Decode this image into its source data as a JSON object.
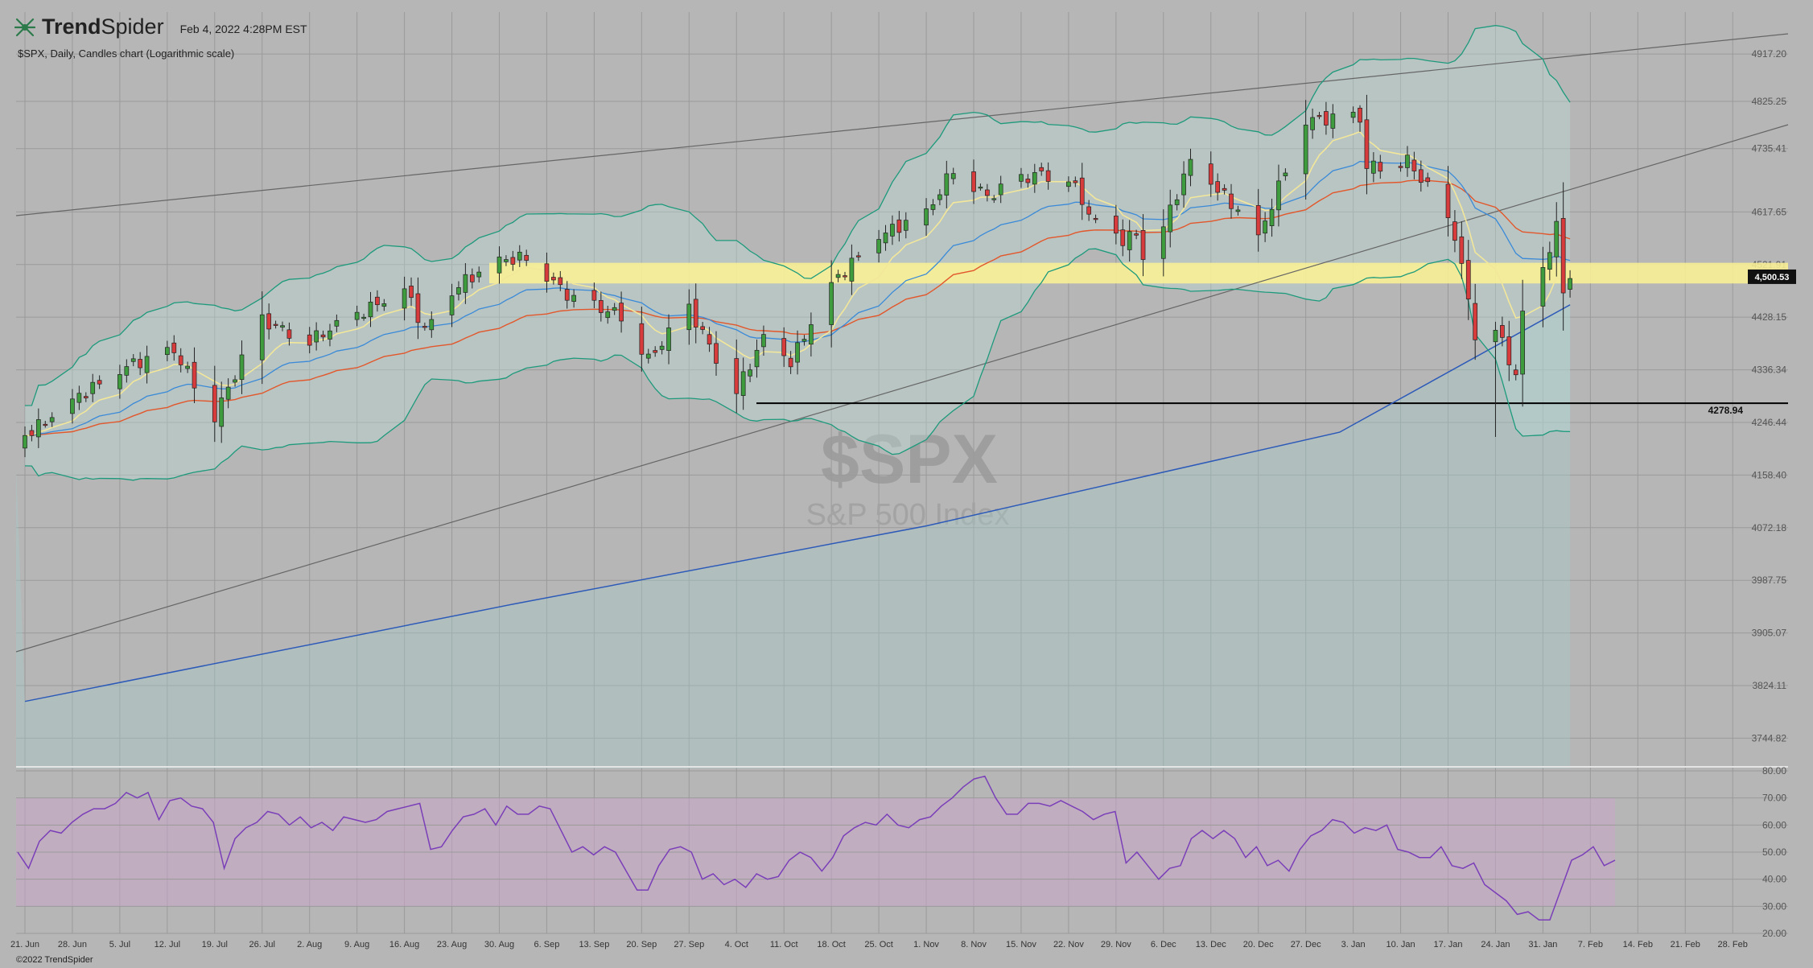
{
  "header": {
    "brand_bold": "Trend",
    "brand_light": "Spider",
    "date": "Feb 4, 2022 4:28PM EST",
    "subtitle": "$SPX, Daily, Candles chart (Logarithmic scale)",
    "logo_icon": "spider-logo-icon"
  },
  "watermark": {
    "symbol": "$SPX",
    "name": "S&P 500 Index"
  },
  "footer": {
    "copyright": "©2022 TrendSpider"
  },
  "colors": {
    "background": "#b6b6b6",
    "up": "#3e9c3e",
    "down": "#d83b3b",
    "sma200": "#2d5ab8",
    "sma50": "#e2572b",
    "bollinger": "#1d9a7c",
    "fast_band": "#f2e79a",
    "rsi": "#7a3fb8",
    "rsi_band": "#caa6c8",
    "resistance_zone": "#fdf394",
    "price_tag_bg": "#111111"
  },
  "chart_data": [
    {
      "type": "candlestick",
      "title": "$SPX, Daily, Candles chart (Logarithmic scale)",
      "scale": "log",
      "ylim": [
        3700,
        5000
      ],
      "y_ticks": [
        "4917.20",
        "4825.25",
        "4735.41",
        "4617.65",
        "4521.91",
        "4428.15",
        "4336.34",
        "4246.44",
        "4158.40",
        "4072.18",
        "3987.75",
        "3905.07",
        "3824.11",
        "3744.82"
      ],
      "x_ticks": [
        "21. Jun",
        "28. Jun",
        "5. Jul",
        "12. Jul",
        "19. Jul",
        "26. Jul",
        "2. Aug",
        "9. Aug",
        "16. Aug",
        "23. Aug",
        "30. Aug",
        "6. Sep",
        "13. Sep",
        "20. Sep",
        "27. Sep",
        "4. Oct",
        "11. Oct",
        "18. Oct",
        "25. Oct",
        "1. Nov",
        "8. Nov",
        "15. Nov",
        "22. Nov",
        "29. Nov",
        "6. Dec",
        "13. Dec",
        "20. Dec",
        "27. Dec",
        "3. Jan",
        "10. Jan",
        "17. Jan",
        "24. Jan",
        "31. Jan",
        "7. Feb",
        "14. Feb",
        "21. Feb",
        "28. Feb"
      ],
      "close_path": [
        {
          "date": "2021-06-21",
          "close": 4224
        },
        {
          "date": "2021-06-29",
          "close": 4291
        },
        {
          "date": "2021-07-06",
          "close": 4343
        },
        {
          "date": "2021-07-13",
          "close": 4369
        },
        {
          "date": "2021-07-19",
          "close": 4258
        },
        {
          "date": "2021-07-26",
          "close": 4422
        },
        {
          "date": "2021-08-02",
          "close": 4387
        },
        {
          "date": "2021-08-09",
          "close": 4432
        },
        {
          "date": "2021-08-16",
          "close": 4479
        },
        {
          "date": "2021-08-19",
          "close": 4405
        },
        {
          "date": "2021-08-24",
          "close": 4486
        },
        {
          "date": "2021-08-30",
          "close": 4528
        },
        {
          "date": "2021-09-03",
          "close": 4535
        },
        {
          "date": "2021-09-10",
          "close": 4458
        },
        {
          "date": "2021-09-17",
          "close": 4432
        },
        {
          "date": "2021-09-21",
          "close": 4354
        },
        {
          "date": "2021-09-27",
          "close": 4443
        },
        {
          "date": "2021-10-01",
          "close": 4357
        },
        {
          "date": "2021-10-04",
          "close": 4300
        },
        {
          "date": "2021-10-08",
          "close": 4391
        },
        {
          "date": "2021-10-12",
          "close": 4350
        },
        {
          "date": "2021-10-18",
          "close": 4486
        },
        {
          "date": "2021-10-25",
          "close": 4575
        },
        {
          "date": "2021-11-01",
          "close": 4613
        },
        {
          "date": "2021-11-05",
          "close": 4698
        },
        {
          "date": "2021-11-10",
          "close": 4646
        },
        {
          "date": "2021-11-17",
          "close": 4688
        },
        {
          "date": "2021-11-22",
          "close": 4682
        },
        {
          "date": "2021-11-26",
          "close": 4594
        },
        {
          "date": "2021-11-30",
          "close": 4567
        },
        {
          "date": "2021-12-02",
          "close": 4577
        },
        {
          "date": "2021-12-03",
          "close": 4538
        },
        {
          "date": "2021-12-06",
          "close": 4591
        },
        {
          "date": "2021-12-10",
          "close": 4712
        },
        {
          "date": "2021-12-17",
          "close": 4620
        },
        {
          "date": "2021-12-20",
          "close": 4568
        },
        {
          "date": "2021-12-27",
          "close": 4791
        },
        {
          "date": "2022-01-04",
          "close": 4793
        },
        {
          "date": "2022-01-05",
          "close": 4700
        },
        {
          "date": "2022-01-11",
          "close": 4713
        },
        {
          "date": "2022-01-14",
          "close": 4662
        },
        {
          "date": "2022-01-18",
          "close": 4577
        },
        {
          "date": "2022-01-21",
          "close": 4398
        },
        {
          "date": "2022-01-24",
          "close": 4410
        },
        {
          "date": "2022-01-27",
          "close": 4326
        },
        {
          "date": "2022-01-28",
          "close": 4432
        },
        {
          "date": "2022-01-31",
          "close": 4516
        },
        {
          "date": "2022-02-02",
          "close": 4589
        },
        {
          "date": "2022-02-03",
          "close": 4477
        },
        {
          "date": "2022-02-04",
          "close": 4500
        }
      ],
      "last_price": "4,500.53",
      "support_level": "4278.94",
      "resistance_zone_label": "4521.91",
      "overlays": [
        "SMA 200",
        "SMA 50",
        "Bollinger Bands",
        "EMA fast/slow ribbon",
        "Trendlines"
      ]
    },
    {
      "type": "line",
      "name": "RSI",
      "ylim": [
        20,
        80
      ],
      "y_ticks": [
        "80.00",
        "70.00",
        "60.00",
        "50.00",
        "40.00",
        "30.00",
        "20.00"
      ],
      "band": [
        30,
        70
      ],
      "values": [
        50,
        44,
        54,
        58,
        57,
        61,
        64,
        66,
        66,
        68,
        72,
        70,
        72,
        62,
        69,
        70,
        67,
        66,
        61,
        44,
        55,
        59,
        61,
        65,
        64,
        60,
        63,
        59,
        61,
        58,
        63,
        62,
        61,
        62,
        65,
        66,
        67,
        68,
        51,
        52,
        58,
        63,
        64,
        66,
        60,
        67,
        64,
        64,
        67,
        66,
        58,
        50,
        52,
        49,
        52,
        50,
        43,
        36,
        36,
        45,
        51,
        52,
        50,
        40,
        42,
        38,
        40,
        37,
        42,
        40,
        41,
        47,
        50,
        48,
        43,
        48,
        56,
        59,
        61,
        60,
        64,
        60,
        59,
        62,
        63,
        67,
        70,
        74,
        77,
        78,
        70,
        64,
        64,
        68,
        68,
        67,
        69,
        67,
        65,
        62,
        64,
        65,
        46,
        50,
        45,
        40,
        44,
        45,
        55,
        58,
        55,
        58,
        55,
        48,
        52,
        45,
        47,
        43,
        51,
        56,
        58,
        62,
        61,
        57,
        59,
        58,
        60,
        51,
        50,
        48,
        48,
        52,
        45,
        44,
        46,
        38,
        35,
        32,
        27,
        28,
        25,
        25,
        36,
        47,
        49,
        52,
        45,
        47
      ]
    }
  ]
}
